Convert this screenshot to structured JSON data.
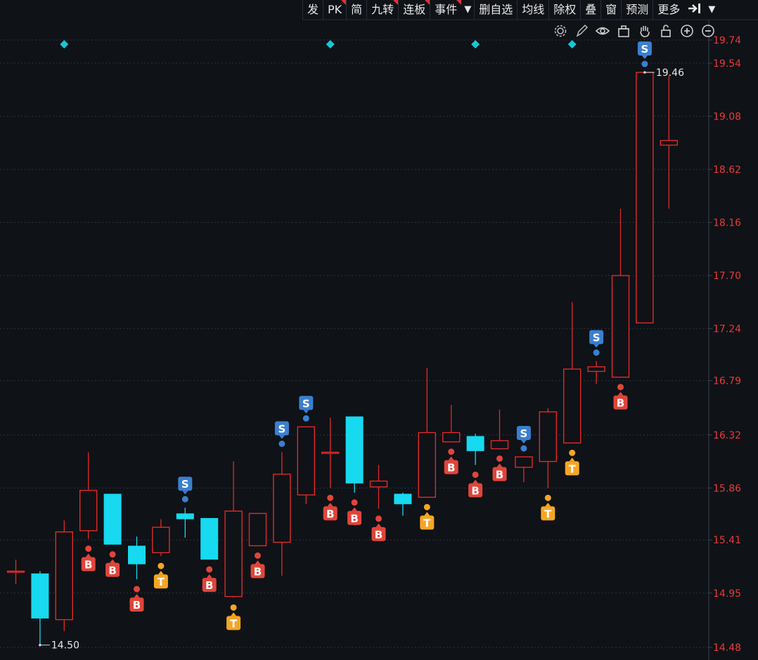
{
  "toolbar": {
    "items": [
      {
        "label": "发",
        "flag": false
      },
      {
        "label": "PK",
        "flag": true
      },
      {
        "label": "简",
        "flag": false
      },
      {
        "label": "九转",
        "flag": true
      },
      {
        "label": "连板",
        "flag": true
      },
      {
        "label": "事件",
        "flag": true
      },
      {
        "label": "▼",
        "flag": false
      },
      {
        "label": "删自选",
        "flag": false
      },
      {
        "label": "均线",
        "flag": false
      },
      {
        "label": "除权",
        "flag": false
      },
      {
        "label": "叠",
        "flag": false
      },
      {
        "label": "窗",
        "flag": false
      },
      {
        "label": "预测",
        "flag": false
      },
      {
        "label": "更多",
        "flag": false
      }
    ],
    "end_icon": "arrow-to-right-icon",
    "end_dropdown": "▼"
  },
  "chart_icons": [
    "gear-icon",
    "pen-icon",
    "eye-icon",
    "basket-icon",
    "hand-icon",
    "lock-icon",
    "zoom-in-icon",
    "zoom-out-icon"
  ],
  "colors": {
    "background": "#0f1217",
    "up": "#e02a2a",
    "down": "#17d9f0",
    "axis_text": "#e6393b",
    "grid": "#2b3440",
    "s_marker": "#3a7fd0",
    "b_marker": "#e0453a",
    "t_marker": "#f5a623",
    "diamond": "#14c8d4"
  },
  "chart_data": {
    "type": "candlestick",
    "y_ticks": [
      "19.74",
      "19.54",
      "19.08",
      "18.62",
      "18.16",
      "17.70",
      "17.24",
      "16.79",
      "16.32",
      "15.86",
      "15.41",
      "14.95",
      "14.48"
    ],
    "ylim": [
      14.48,
      19.74
    ],
    "grid": "dotted-horizontal",
    "candles": [
      {
        "open": 15.14,
        "close": 15.14,
        "high": 15.24,
        "low": 15.03
      },
      {
        "open": 15.12,
        "close": 14.73,
        "high": 15.14,
        "low": 14.5
      },
      {
        "open": 14.72,
        "close": 15.48,
        "high": 15.58,
        "low": 14.62
      },
      {
        "open": 15.49,
        "close": 15.84,
        "high": 16.17,
        "low": 15.42
      },
      {
        "open": 15.81,
        "close": 15.37,
        "high": 15.81,
        "low": 15.37
      },
      {
        "open": 15.36,
        "close": 15.2,
        "high": 15.44,
        "low": 15.07
      },
      {
        "open": 15.3,
        "close": 15.52,
        "high": 15.59,
        "low": 15.27
      },
      {
        "open": 15.64,
        "close": 15.59,
        "high": 15.69,
        "low": 15.43
      },
      {
        "open": 15.6,
        "close": 15.24,
        "high": 15.6,
        "low": 15.24
      },
      {
        "open": 14.92,
        "close": 15.66,
        "high": 16.09,
        "low": 14.91
      },
      {
        "open": 15.36,
        "close": 15.64,
        "high": 15.64,
        "low": 15.36
      },
      {
        "open": 15.39,
        "close": 15.98,
        "high": 16.17,
        "low": 15.1
      },
      {
        "open": 15.8,
        "close": 16.39,
        "high": 16.39,
        "low": 15.72
      },
      {
        "open": 16.16,
        "close": 16.17,
        "high": 16.47,
        "low": 15.86
      },
      {
        "open": 16.48,
        "close": 15.9,
        "high": 16.48,
        "low": 15.82
      },
      {
        "open": 15.87,
        "close": 15.92,
        "high": 16.06,
        "low": 15.68
      },
      {
        "open": 15.81,
        "close": 15.72,
        "high": 15.82,
        "low": 15.62
      },
      {
        "open": 15.78,
        "close": 16.34,
        "high": 16.9,
        "low": 15.78
      },
      {
        "open": 16.26,
        "close": 16.34,
        "high": 16.58,
        "low": 16.26
      },
      {
        "open": 16.31,
        "close": 16.18,
        "high": 16.33,
        "low": 16.06
      },
      {
        "open": 16.2,
        "close": 16.27,
        "high": 16.54,
        "low": 16.2
      },
      {
        "open": 16.04,
        "close": 16.13,
        "high": 16.13,
        "low": 15.91
      },
      {
        "open": 16.09,
        "close": 16.52,
        "high": 16.55,
        "low": 15.86
      },
      {
        "open": 16.25,
        "close": 16.89,
        "high": 17.47,
        "low": 16.25
      },
      {
        "open": 16.87,
        "close": 16.91,
        "high": 16.96,
        "low": 16.76
      },
      {
        "open": 16.82,
        "close": 17.7,
        "high": 18.28,
        "low": 16.82
      },
      {
        "open": 17.29,
        "close": 19.46,
        "high": 19.46,
        "low": 17.29
      },
      {
        "open": 18.83,
        "close": 18.87,
        "high": 19.43,
        "low": 18.28
      }
    ],
    "markers": [
      {
        "candle": 3,
        "type": "B"
      },
      {
        "candle": 4,
        "type": "B"
      },
      {
        "candle": 5,
        "type": "B"
      },
      {
        "candle": 6,
        "type": "T"
      },
      {
        "candle": 7,
        "type": "S"
      },
      {
        "candle": 8,
        "type": "B"
      },
      {
        "candle": 9,
        "type": "T"
      },
      {
        "candle": 10,
        "type": "B"
      },
      {
        "candle": 11,
        "type": "S"
      },
      {
        "candle": 12,
        "type": "S"
      },
      {
        "candle": 13,
        "type": "B"
      },
      {
        "candle": 14,
        "type": "B"
      },
      {
        "candle": 15,
        "type": "B"
      },
      {
        "candle": 17,
        "type": "T"
      },
      {
        "candle": 18,
        "type": "B"
      },
      {
        "candle": 19,
        "type": "B"
      },
      {
        "candle": 20,
        "type": "B"
      },
      {
        "candle": 21,
        "type": "S"
      },
      {
        "candle": 22,
        "type": "T"
      },
      {
        "candle": 23,
        "type": "T"
      },
      {
        "candle": 24,
        "type": "S"
      },
      {
        "candle": 25,
        "type": "B"
      },
      {
        "candle": 26,
        "type": "S"
      }
    ],
    "diamonds_at_candles": [
      2,
      13,
      19,
      23
    ],
    "annotations": [
      {
        "candle": 1,
        "value": 14.5,
        "label": "14.50"
      },
      {
        "candle": 26,
        "value": 19.46,
        "label": "19.46"
      }
    ]
  }
}
